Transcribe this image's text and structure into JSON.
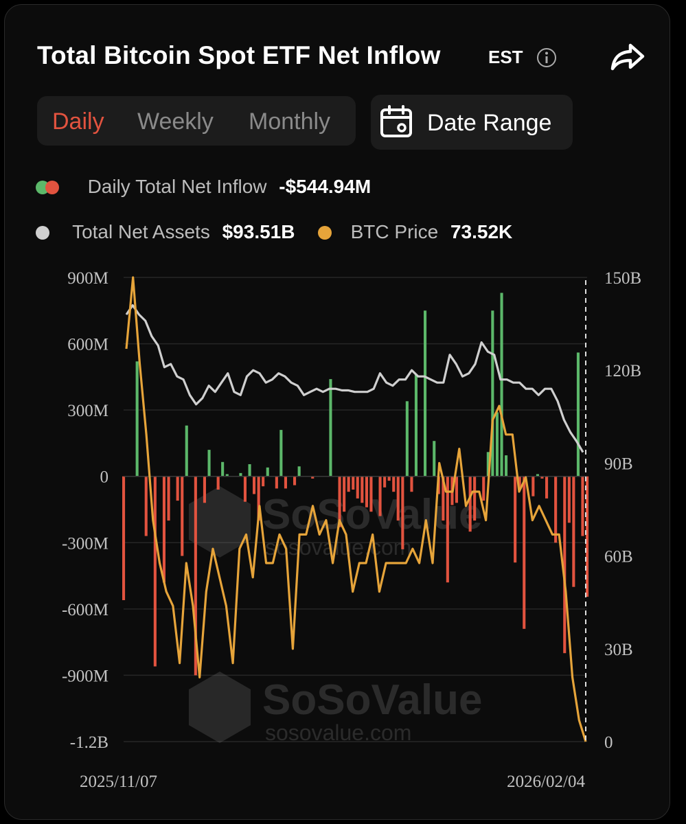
{
  "header": {
    "title": "Total Bitcoin Spot ETF Net Inflow",
    "timezone": "EST"
  },
  "tabs": [
    {
      "label": "Daily",
      "active": true
    },
    {
      "label": "Weekly",
      "active": false
    },
    {
      "label": "Monthly",
      "active": false
    }
  ],
  "date_range": {
    "label": "Date Range"
  },
  "legend": {
    "inflow_label": "Daily Total Net Inflow",
    "inflow_value": "-$544.94M",
    "assets_label": "Total Net Assets",
    "assets_value": "$93.51B",
    "price_label": "BTC Price",
    "price_value": "73.52K"
  },
  "colors": {
    "positive": "#5cb86a",
    "negative": "#e2533f",
    "assets_line": "#cfcfcf",
    "price_line": "#e6a43a",
    "active_tab": "#e2533f"
  },
  "watermark": {
    "brand": "SoSoValue",
    "url": "sosovalue.com"
  },
  "chart_data": {
    "type": "bar",
    "x_start": "2025/11/07",
    "x_end": "2026/02/04",
    "left_axis": {
      "ticks": [
        "900M",
        "600M",
        "300M",
        "0",
        "-300M",
        "-600M",
        "-900M",
        "-1.2B"
      ],
      "range": [
        -1200,
        900
      ],
      "unit": "M"
    },
    "right_axis": {
      "ticks": [
        "150B",
        "120B",
        "90B",
        "60B",
        "30B",
        "0"
      ],
      "range": [
        0,
        150
      ],
      "unit": "B"
    },
    "series": [
      {
        "name": "Daily Total Net Inflow",
        "type": "bar",
        "unit": "M",
        "values": [
          -560,
          0,
          0,
          520,
          0,
          -270,
          0,
          -860,
          0,
          -480,
          -200,
          0,
          -110,
          -360,
          230,
          0,
          -900,
          0,
          -120,
          120,
          0,
          -60,
          65,
          10,
          0,
          0,
          15,
          -115,
          55,
          -80,
          -200,
          -45,
          40,
          0,
          -55,
          210,
          -55,
          0,
          -40,
          45,
          0,
          0,
          -10,
          0,
          0,
          0,
          440,
          0,
          -230,
          -160,
          -70,
          -60,
          -100,
          -120,
          -140,
          -160,
          0,
          -180,
          -50,
          -20,
          -70,
          -200,
          -330,
          340,
          -70,
          460,
          0,
          750,
          0,
          160,
          -80,
          -200,
          -480,
          -130,
          -120,
          0,
          0,
          -250,
          -200,
          0,
          -110,
          110,
          750,
          290,
          830,
          95,
          0,
          -390,
          -60,
          -690,
          0,
          -90,
          10,
          -10,
          -100,
          0,
          -300,
          0,
          -800,
          -210,
          -500,
          560,
          -270,
          -545
        ]
      },
      {
        "name": "Total Net Assets",
        "type": "line",
        "unit": "B",
        "values": [
          138,
          141,
          138,
          136,
          131,
          128,
          121,
          122,
          118,
          117,
          112,
          109,
          111,
          115,
          113,
          116,
          119,
          113,
          112,
          118,
          120,
          119,
          116,
          117,
          119,
          118,
          116,
          115,
          112,
          113,
          114,
          113,
          114,
          114,
          113.5,
          113.5,
          113,
          113,
          113,
          114,
          119,
          116,
          115,
          117,
          117,
          120,
          118,
          118,
          117,
          116,
          116,
          125,
          122,
          118,
          119,
          122,
          129,
          126,
          125,
          117,
          117,
          116,
          116,
          114,
          114,
          112,
          114,
          114,
          110,
          104,
          100,
          97,
          93.5
        ]
      },
      {
        "name": "BTC Price",
        "type": "line",
        "unit": "K",
        "values": [
          101,
          106,
          100,
          95,
          89,
          86,
          84,
          83,
          79,
          86,
          83,
          78,
          84,
          87,
          85,
          83,
          79,
          87,
          88,
          85,
          90,
          86,
          86,
          88,
          87,
          80,
          88,
          88,
          90,
          88,
          89,
          86,
          89,
          88,
          84,
          86,
          86,
          88,
          84,
          86,
          86,
          86,
          86,
          87,
          86,
          89,
          86,
          93,
          91,
          91,
          94,
          90,
          91,
          91,
          89,
          96,
          97,
          95,
          95,
          91,
          92,
          89,
          90,
          89,
          88,
          88,
          84,
          78,
          75,
          73.5
        ]
      }
    ]
  }
}
